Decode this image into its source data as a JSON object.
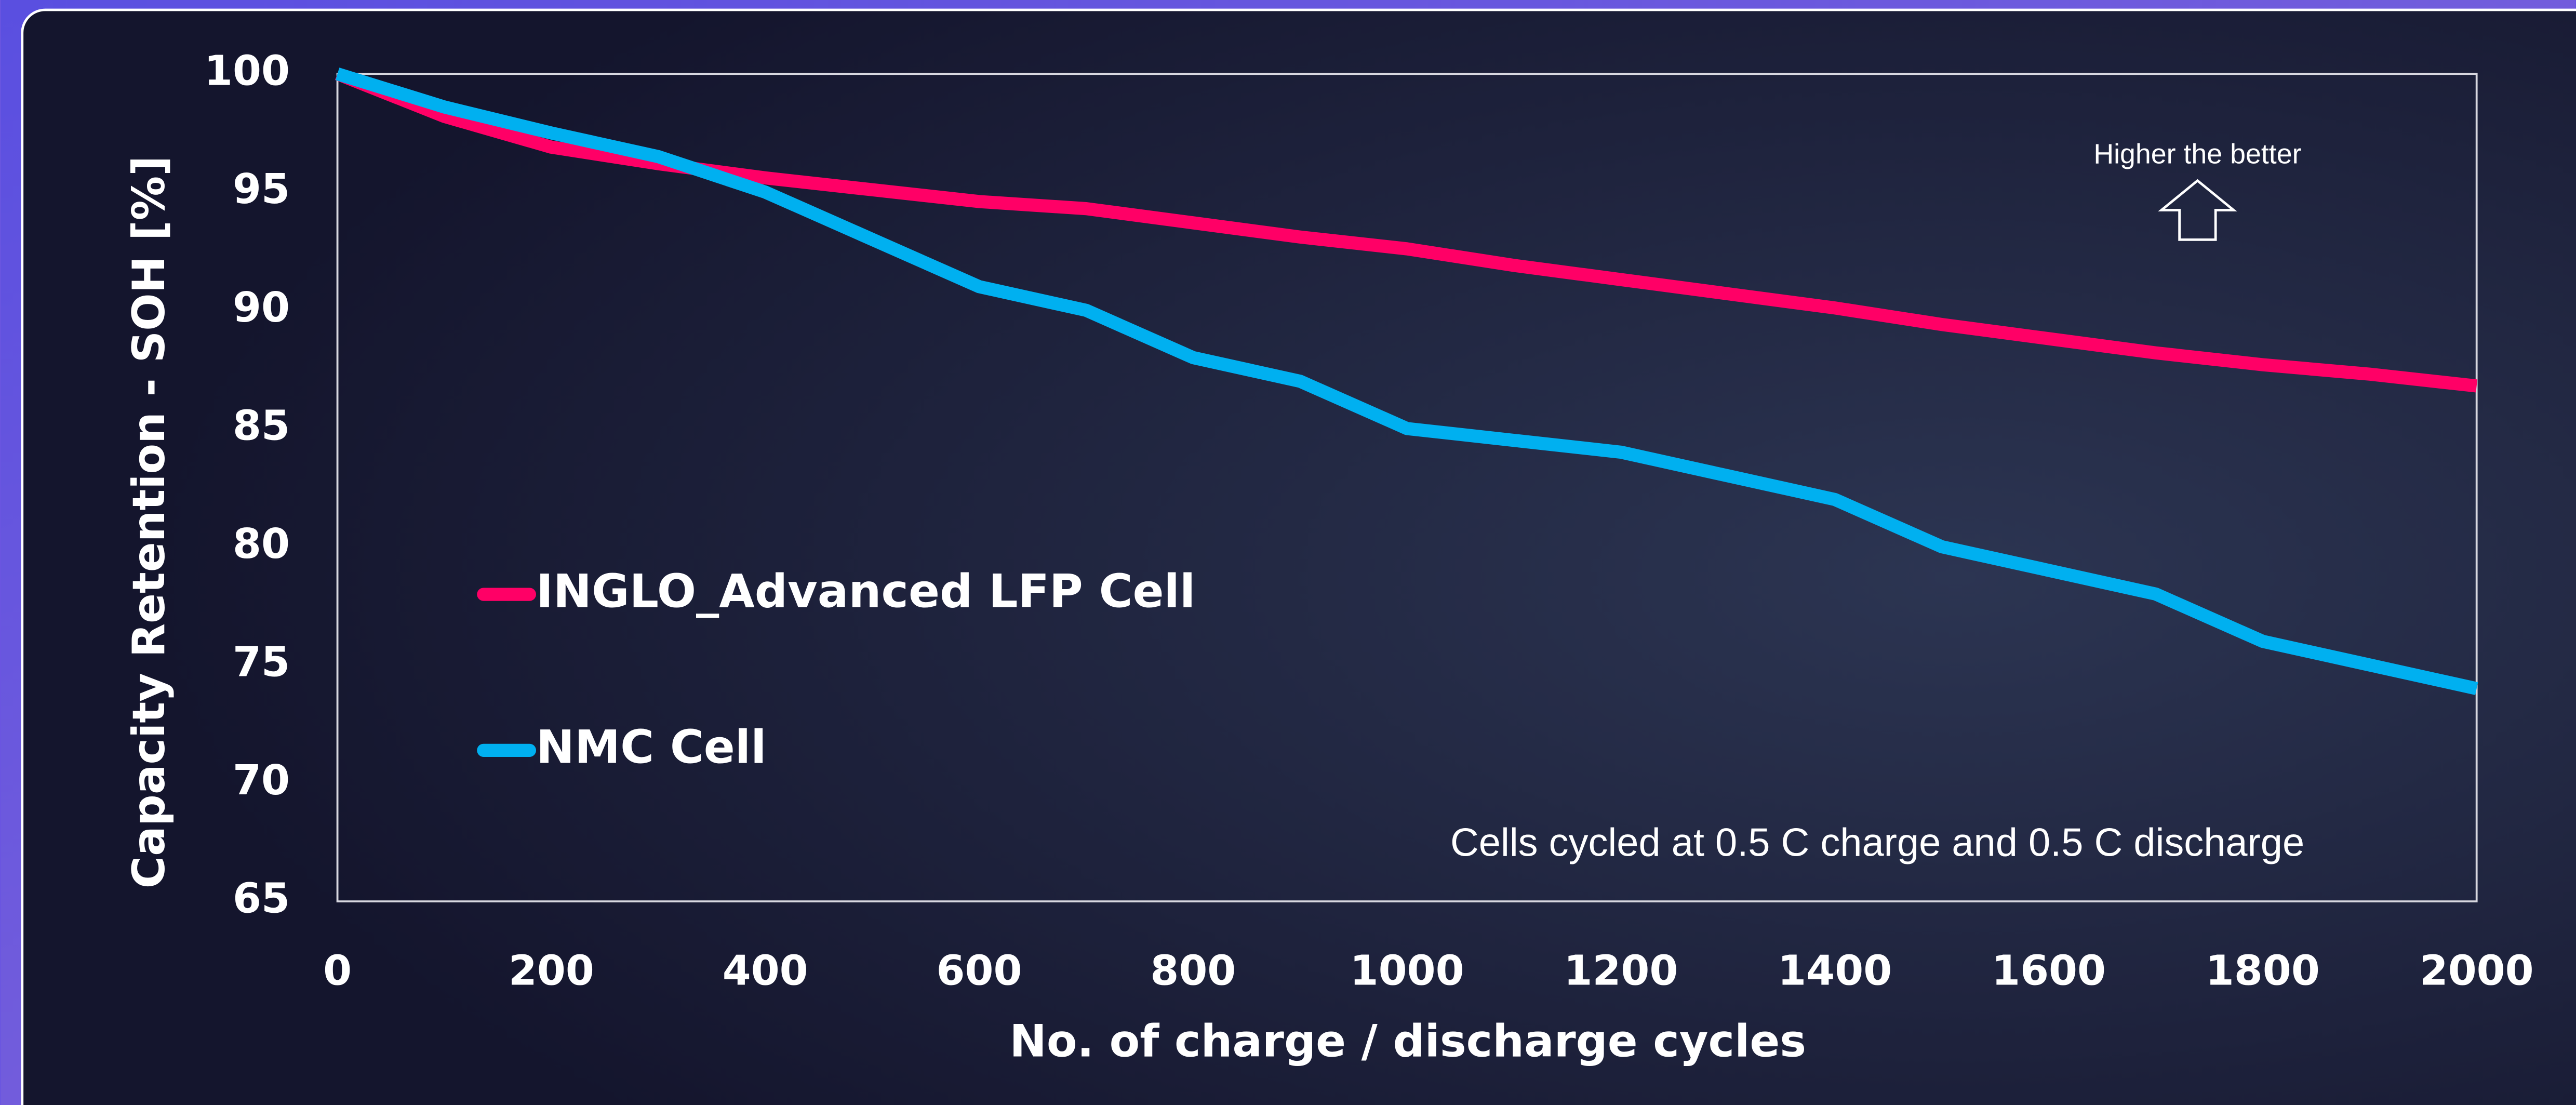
{
  "chart_data": {
    "type": "line",
    "x_label": "No. of charge / discharge cycles",
    "y_label": "Capacity Retention - SOH [%]",
    "annotations": [
      "Higher the better",
      "Cells cycled at 0.5 C charge and 0.5 C discharge"
    ],
    "x": [
      0,
      100,
      200,
      300,
      400,
      500,
      600,
      700,
      800,
      900,
      1000,
      1100,
      1200,
      1300,
      1400,
      1500,
      1600,
      1700,
      1800,
      1900,
      2000
    ],
    "series": [
      {
        "name": "INGLO_Advanced LFP Cell",
        "color": "#ff0066",
        "values": [
          100,
          98.2,
          96.9,
          96.2,
          95.6,
          95.1,
          94.6,
          94.3,
          93.7,
          93.1,
          92.6,
          91.9,
          91.3,
          90.7,
          90.1,
          89.4,
          88.8,
          88.2,
          87.7,
          87.3,
          86.8
        ]
      },
      {
        "name": "NMC Cell",
        "color": "#00b0f0",
        "values": [
          100,
          98.6,
          97.5,
          96.5,
          95,
          93,
          91,
          90,
          88,
          87,
          85,
          84.5,
          84,
          83,
          82,
          80,
          79,
          78,
          76,
          75,
          74
        ]
      }
    ],
    "xlim": [
      0,
      2000
    ],
    "xticks": [
      0,
      200,
      400,
      600,
      800,
      1000,
      1200,
      1400,
      1600,
      1800,
      2000
    ],
    "ylim": [
      65,
      100
    ],
    "yticks": [
      65,
      70,
      75,
      80,
      85,
      90,
      95,
      100
    ],
    "grid": false,
    "legend": "left"
  }
}
